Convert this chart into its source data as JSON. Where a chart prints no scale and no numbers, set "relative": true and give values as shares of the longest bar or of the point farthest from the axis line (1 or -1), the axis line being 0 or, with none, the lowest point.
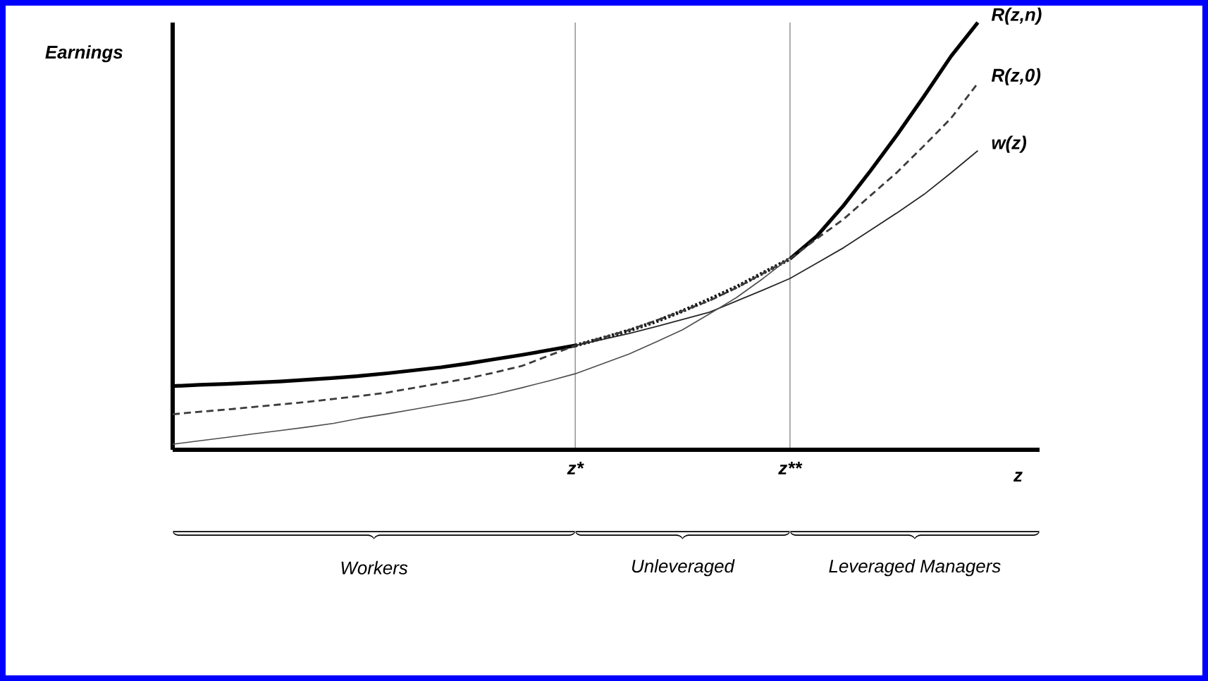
{
  "chart_data": {
    "type": "line",
    "relative": true,
    "xlabel": "z",
    "ylabel": "Earnings",
    "tick_labels": "x",
    "grid": "x",
    "categories": [
      null,
      null,
      null,
      null,
      null,
      null,
      null,
      null,
      null,
      null,
      null,
      null,
      null,
      null,
      null,
      "z*",
      null,
      null,
      null,
      null,
      null,
      null,
      null,
      "z**",
      null,
      null,
      null,
      null,
      null,
      null,
      null
    ],
    "series": [
      {
        "name": "R(z,n)",
        "color": "#000000",
        "line_style": "solid",
        "values": [
          0.149,
          0.152,
          0.154,
          0.157,
          0.16,
          0.164,
          0.168,
          0.173,
          0.179,
          0.186,
          0.193,
          0.202,
          0.212,
          0.222,
          0.233,
          0.244,
          null,
          null,
          null,
          null,
          null,
          null,
          null,
          0.447,
          0.5,
          0.572,
          0.653,
          0.738,
          0.828,
          0.921,
          1
        ]
      },
      {
        "color": "#111111",
        "line_style": "dotted",
        "values": [
          null,
          null,
          null,
          null,
          null,
          null,
          null,
          null,
          null,
          null,
          null,
          null,
          null,
          null,
          null,
          0.244,
          0.261,
          0.279,
          0.3,
          0.325,
          0.352,
          0.381,
          0.414,
          0.447,
          null,
          null,
          null,
          null,
          null,
          null,
          null
        ]
      },
      {
        "name": "R(z,0)",
        "color": "#3c3c3c",
        "line_style": "dashed",
        "values": [
          0.083,
          0.089,
          0.094,
          0.1,
          0.106,
          0.112,
          0.119,
          0.126,
          0.134,
          0.145,
          0.156,
          0.167,
          0.181,
          0.196,
          0.22,
          0.244,
          0.262,
          0.28,
          0.302,
          0.325,
          0.349,
          0.379,
          0.413,
          0.447,
          0.494,
          0.54,
          0.595,
          0.65,
          0.712,
          0.776,
          0.858
        ]
      },
      {
        "name": "w(z)",
        "color": "#262626",
        "line_style": "solid",
        "values": [
          null,
          null,
          null,
          null,
          null,
          null,
          null,
          null,
          null,
          null,
          null,
          null,
          null,
          null,
          null,
          0.244,
          0.258,
          0.272,
          0.288,
          0.305,
          0.322,
          0.348,
          0.374,
          0.401,
          0.437,
          0.473,
          0.514,
          0.555,
          0.598,
          0.648,
          0.7
        ]
      },
      {
        "color": "#4d4d4d",
        "line_style": "solid",
        "values": [
          0.013,
          0.021,
          0.029,
          0.037,
          0.045,
          0.053,
          0.062,
          0.074,
          0.084,
          0.095,
          0.106,
          0.117,
          0.13,
          0.145,
          0.161,
          0.178,
          0.201,
          0.224,
          0.252,
          0.281,
          0.318,
          0.356,
          0.401,
          0.45,
          null,
          null,
          null,
          null,
          null,
          null,
          null
        ]
      }
    ],
    "annotations": [
      "Workers",
      "Unleveraged",
      "Leveraged Managers"
    ]
  }
}
